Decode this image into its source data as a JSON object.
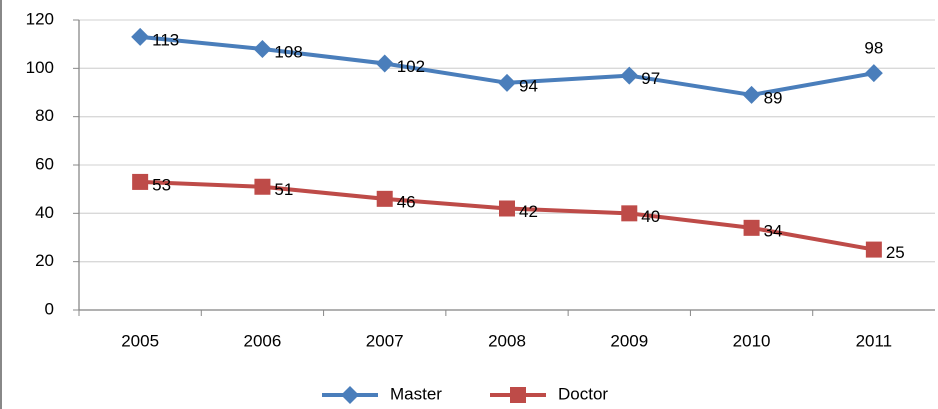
{
  "chart_data": {
    "type": "line",
    "categories": [
      "2005",
      "2006",
      "2007",
      "2008",
      "2009",
      "2010",
      "2011"
    ],
    "series": [
      {
        "name": "Master",
        "color": "#4a7ebb",
        "marker": "diamond",
        "values": [
          113,
          108,
          102,
          94,
          97,
          89,
          98
        ]
      },
      {
        "name": "Doctor",
        "color": "#be4b48",
        "marker": "square",
        "values": [
          53,
          51,
          46,
          42,
          40,
          34,
          25
        ]
      }
    ],
    "ylim": [
      0,
      120
    ],
    "yticks": [
      0,
      20,
      40,
      60,
      80,
      100,
      120
    ],
    "grid": true,
    "legend": "bottom"
  }
}
